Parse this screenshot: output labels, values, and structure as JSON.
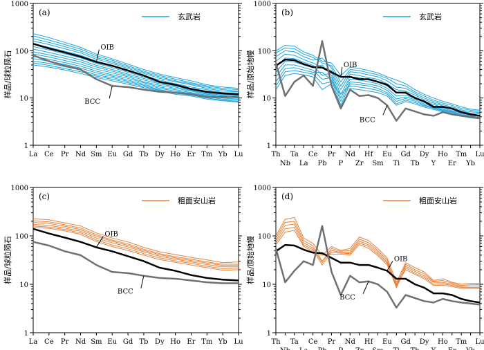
{
  "colors": {
    "basalt": "#1aa3dc",
    "trachyandesite": "#e8813a",
    "oib": "#000000",
    "bcc": "#707070"
  },
  "chart_data": [
    {
      "id": "a",
      "type": "line",
      "panel_label": "(a)",
      "ylabel": "样品/球粒陨石",
      "yscale": "log",
      "ylim": [
        1,
        1000
      ],
      "ytick_labels": [
        "1",
        "10",
        "100",
        "1000"
      ],
      "categories": [
        "La",
        "Ce",
        "Pr",
        "Nd",
        "Sm",
        "Eu",
        "Gd",
        "Tb",
        "Dy",
        "Ho",
        "Er",
        "Tm",
        "Yb",
        "Lu"
      ],
      "legend": {
        "label": "玄武岩",
        "placement": "top-right"
      },
      "sample_color_key": "basalt",
      "samples": [
        [
          230,
          190,
          150,
          118,
          85,
          68,
          52,
          40,
          32,
          27,
          23,
          19,
          17,
          16
        ],
        [
          205,
          168,
          135,
          108,
          78,
          63,
          48,
          37,
          30,
          25,
          21,
          18,
          16,
          15
        ],
        [
          180,
          150,
          122,
          98,
          72,
          58,
          45,
          35,
          28,
          23,
          20,
          17,
          15,
          14
        ],
        [
          160,
          135,
          110,
          90,
          66,
          54,
          42,
          33,
          26,
          22,
          19,
          16,
          14,
          13.5
        ],
        [
          140,
          118,
          97,
          80,
          60,
          49,
          38,
          30,
          24,
          20,
          17,
          15,
          13,
          12.5
        ],
        [
          122,
          104,
          86,
          71,
          54,
          44,
          35,
          28,
          22,
          19,
          16,
          14,
          12.5,
          12
        ],
        [
          108,
          92,
          77,
          64,
          49,
          40,
          32,
          26,
          21,
          18,
          15,
          13,
          12,
          11.5
        ],
        [
          95,
          82,
          69,
          58,
          45,
          37,
          30,
          24,
          20,
          17,
          14.5,
          12.5,
          11.5,
          11
        ],
        [
          85,
          74,
          62,
          52,
          41,
          34,
          28,
          22,
          18.5,
          16,
          14,
          12,
          11,
          10.5
        ],
        [
          76,
          66,
          56,
          47,
          37,
          31,
          26,
          21,
          17,
          15,
          13,
          11.5,
          10.5,
          10
        ],
        [
          68,
          60,
          51,
          43,
          34,
          29,
          24,
          19.5,
          16,
          14,
          12.5,
          11,
          10,
          9.5
        ],
        [
          60,
          54,
          46,
          39,
          31,
          27,
          22.5,
          18.5,
          15,
          13,
          12,
          10.5,
          9.5,
          9
        ],
        [
          55,
          49,
          42,
          36,
          29,
          25,
          21,
          17.5,
          14.5,
          12.5,
          11.5,
          10,
          9,
          8.5
        ],
        [
          50,
          45,
          39,
          33,
          27,
          23,
          19.5,
          16.5,
          14,
          12,
          11,
          9.5,
          8.7,
          8.2
        ]
      ],
      "series": [
        {
          "name": "OIB",
          "values": [
            140,
            112,
            92,
            75,
            58,
            48,
            38,
            30,
            22,
            19,
            15.5,
            13.5,
            12.5,
            12
          ]
        },
        {
          "name": "BCC",
          "values": [
            80,
            60,
            48,
            40,
            25,
            18,
            17,
            15,
            13.5,
            13,
            12,
            10.5,
            10.5,
            10.5
          ]
        }
      ],
      "annotations": [
        {
          "text": "OIB",
          "series": "OIB",
          "index": 4
        },
        {
          "text": "BCC",
          "series": "BCC",
          "index": 5
        }
      ]
    },
    {
      "id": "b",
      "type": "line",
      "panel_label": "(b)",
      "ylabel": "样品/原始地幔",
      "yscale": "log",
      "ylim": [
        1,
        1000
      ],
      "ytick_labels": [
        "1",
        "10",
        "100",
        "1000"
      ],
      "categories": [
        "Th",
        "Nb",
        "Ta",
        "La",
        "Ce",
        "Pb",
        "Pr",
        "P",
        "Nd",
        "Zr",
        "Hf",
        "Sm",
        "Eu",
        "Ti",
        "Gd",
        "Tb",
        "Dy",
        "Y",
        "Ho",
        "Er",
        "Tm",
        "Yb",
        "Lu"
      ],
      "legend": {
        "label": "玄武岩",
        "placement": "top-right"
      },
      "sample_color_key": "basalt",
      "samples": [
        [
          100,
          130,
          125,
          95,
          80,
          60,
          55,
          30,
          45,
          42,
          38,
          34,
          28,
          24,
          20,
          15,
          12,
          10,
          8.5,
          7.5,
          6.5,
          5.8,
          5.5
        ],
        [
          90,
          115,
          110,
          85,
          72,
          55,
          48,
          22,
          40,
          38,
          34,
          31,
          26,
          20,
          18,
          13.5,
          11,
          9,
          7.8,
          7,
          6,
          5.5,
          5.2
        ],
        [
          75,
          100,
          95,
          75,
          63,
          70,
          43,
          18,
          36,
          34,
          31,
          28,
          23,
          17,
          16,
          12.5,
          10,
          8.4,
          7.2,
          6.5,
          5.6,
          5.1,
          4.9
        ],
        [
          60,
          85,
          80,
          65,
          55,
          45,
          38,
          15,
          32,
          30,
          27,
          25,
          20,
          15,
          14,
          11.5,
          9.2,
          7.8,
          6.8,
          6.1,
          5.3,
          4.8,
          4.6
        ],
        [
          45,
          70,
          68,
          57,
          49,
          30,
          34,
          12,
          28,
          27,
          24,
          22,
          18,
          13,
          12.5,
          10.5,
          8.5,
          7.3,
          6.3,
          5.7,
          5,
          4.5,
          4.3
        ],
        [
          35,
          60,
          58,
          50,
          44,
          50,
          30,
          10,
          25,
          24,
          22,
          20,
          16,
          11,
          11.5,
          9.8,
          8,
          6.8,
          6,
          5.4,
          4.8,
          4.3,
          4.1
        ],
        [
          28,
          50,
          50,
          44,
          39,
          25,
          27,
          8.5,
          22,
          21,
          19.5,
          18,
          14.5,
          9.5,
          10.5,
          9.2,
          7.5,
          6.5,
          5.7,
          5.2,
          4.6,
          4.1,
          3.9
        ],
        [
          22,
          42,
          44,
          39,
          35,
          35,
          24,
          7,
          20,
          19,
          18,
          16,
          13,
          8.5,
          9.8,
          8.6,
          7.1,
          6.2,
          5.5,
          5,
          4.4,
          4,
          3.8
        ],
        [
          18,
          36,
          38,
          35,
          32,
          20,
          22,
          12,
          18,
          17,
          16,
          14.5,
          12,
          7.5,
          9,
          8,
          6.8,
          6,
          5.3,
          4.8,
          4.3,
          3.9,
          3.7
        ],
        [
          15,
          30,
          33,
          31,
          28,
          15,
          20,
          6.5,
          16,
          15,
          14,
          13,
          11,
          7,
          8.4,
          7.5,
          6.4,
          5.7,
          5.1,
          4.6,
          4.1,
          3.8,
          3.6
        ]
      ],
      "series": [
        {
          "name": "OIB",
          "values": [
            48,
            65,
            63,
            52,
            45,
            44,
            35,
            28,
            28,
            25,
            25,
            22,
            19,
            13,
            13,
            10,
            8.5,
            6.5,
            6.5,
            6,
            5,
            4.5,
            4.2
          ]
        },
        {
          "name": "BCC",
          "values": [
            55,
            11,
            22,
            30,
            18,
            160,
            18,
            6,
            15,
            11,
            11.5,
            10,
            7,
            3.3,
            6,
            5.2,
            4.5,
            4.2,
            5,
            4.5,
            4.2,
            4,
            3.8
          ]
        }
      ],
      "annotations": [
        {
          "text": "OIB",
          "series": "OIB",
          "index": 7
        },
        {
          "text": "BCC",
          "series": "BCC",
          "index": 12
        }
      ]
    },
    {
      "id": "c",
      "type": "line",
      "panel_label": "(c)",
      "ylabel": "样品/球粒陨石",
      "yscale": "log",
      "ylim": [
        1,
        1000
      ],
      "ytick_labels": [
        "1",
        "10",
        "100",
        "1000"
      ],
      "categories": [
        "La",
        "Ce",
        "Pr",
        "Nd",
        "Sm",
        "Eu",
        "Gd",
        "Tb",
        "Dy",
        "Ho",
        "Er",
        "Tm",
        "Yb",
        "Lu"
      ],
      "legend": {
        "label": "粗面安山岩",
        "placement": "top-right"
      },
      "sample_color_key": "trachyandesite",
      "samples": [
        [
          225,
          215,
          185,
          160,
          115,
          90,
          75,
          58,
          47,
          41,
          36,
          32,
          28,
          29
        ],
        [
          205,
          195,
          170,
          145,
          105,
          82,
          68,
          53,
          43,
          37,
          33,
          29,
          26,
          26
        ],
        [
          190,
          180,
          158,
          135,
          98,
          78,
          64,
          50,
          41,
          35,
          31,
          27.5,
          24.5,
          24.5
        ],
        [
          172,
          165,
          145,
          125,
          90,
          72,
          59,
          47,
          38,
          33,
          29,
          25.5,
          23,
          23
        ],
        [
          160,
          152,
          135,
          116,
          82,
          65,
          54,
          43,
          35,
          30.5,
          27,
          23.5,
          21,
          21.5
        ],
        [
          150,
          143,
          127,
          108,
          76,
          60,
          50,
          40,
          32.5,
          28.5,
          25,
          22,
          19.5,
          20
        ]
      ],
      "series": [
        {
          "name": "OIB",
          "values": [
            140,
            112,
            92,
            75,
            58,
            48,
            38,
            30,
            22,
            19,
            15.5,
            13.5,
            12.5,
            12
          ]
        },
        {
          "name": "BCC",
          "values": [
            75,
            63,
            48,
            40,
            25,
            18,
            17,
            15,
            13.5,
            13,
            12,
            11,
            10.5,
            10.5
          ]
        }
      ],
      "annotations": [
        {
          "text": "OIB",
          "series": "OIB",
          "index": 4
        },
        {
          "text": "BCC",
          "series": "BCC",
          "index": 7
        }
      ]
    },
    {
      "id": "d",
      "type": "line",
      "panel_label": "(d)",
      "ylabel": "样品/原始地幔",
      "yscale": "log",
      "ylim": [
        1,
        1000
      ],
      "ytick_labels": [
        "1",
        "10",
        "100",
        "1000"
      ],
      "categories": [
        "Th",
        "Nb",
        "Ta",
        "La",
        "Ce",
        "Pb",
        "Pr",
        "P",
        "Nd",
        "Zr",
        "Hf",
        "Sm",
        "Eu",
        "Ti",
        "Gd",
        "Tb",
        "Dy",
        "Y",
        "Ho",
        "Er",
        "Tm",
        "Yb",
        "Lu"
      ],
      "legend": {
        "label": "粗面安山岩",
        "placement": "top-right"
      },
      "sample_color_key": "trachyandesite",
      "samples": [
        [
          100,
          220,
          240,
          90,
          70,
          40,
          60,
          50,
          55,
          95,
          80,
          55,
          35,
          11,
          28,
          22,
          18,
          12,
          13,
          11,
          10,
          10.5,
          10.5
        ],
        [
          90,
          190,
          200,
          80,
          62,
          30,
          55,
          48,
          50,
          85,
          72,
          50,
          32,
          9,
          26,
          20,
          16.5,
          11.5,
          12,
          10.5,
          9.5,
          9.8,
          9.8
        ],
        [
          80,
          165,
          175,
          72,
          56,
          28,
          50,
          46,
          46,
          78,
          65,
          46,
          29,
          10,
          24,
          18.5,
          15,
          11,
          11,
          10,
          9,
          9.2,
          9.2
        ],
        [
          72,
          140,
          150,
          65,
          52,
          25,
          46,
          44,
          43,
          72,
          60,
          42,
          27,
          8.5,
          22,
          17,
          14,
          10,
          10.2,
          9.5,
          8.6,
          8.6,
          8.6
        ],
        [
          65,
          120,
          130,
          60,
          48,
          40,
          42,
          42,
          40,
          66,
          55,
          39,
          25,
          9.5,
          20,
          16,
          13,
          9.5,
          9.6,
          9,
          8.2,
          8.2,
          8.2
        ]
      ],
      "series": [
        {
          "name": "OIB",
          "values": [
            48,
            65,
            63,
            52,
            45,
            44,
            35,
            28,
            28,
            25,
            25,
            22,
            19,
            13,
            13,
            10,
            8.5,
            6.5,
            6.5,
            6,
            5,
            4.5,
            4.2
          ]
        },
        {
          "name": "BCC",
          "values": [
            55,
            11,
            19,
            30,
            25,
            160,
            18,
            6,
            15,
            11,
            11.5,
            10,
            7,
            3.3,
            6,
            5.2,
            4.5,
            4.2,
            5,
            4.5,
            4.2,
            4,
            3.8
          ]
        }
      ],
      "annotations": [
        {
          "text": "OIB",
          "series": "OIB",
          "index": 12
        },
        {
          "text": "BCC",
          "series": "BCC",
          "index": 10
        }
      ]
    }
  ]
}
